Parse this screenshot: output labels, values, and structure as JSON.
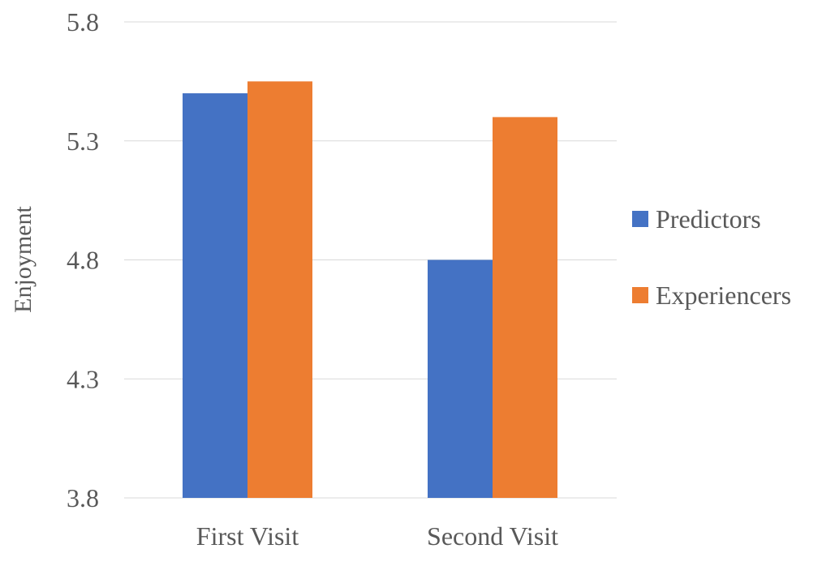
{
  "chart_data": {
    "type": "bar",
    "title": "",
    "xlabel": "",
    "ylabel": "Enjoyment",
    "ylim": [
      3.8,
      5.8
    ],
    "yticks": [
      "3.8",
      "4.3",
      "4.8",
      "5.3",
      "5.8"
    ],
    "categories": [
      "First Visit",
      "Second Visit"
    ],
    "series": [
      {
        "name": "Predictors",
        "values": [
          5.5,
          4.8
        ],
        "color": "#4472C4"
      },
      {
        "name": "Experiencers",
        "values": [
          5.55,
          5.4
        ],
        "color": "#ED7D31"
      }
    ],
    "grid": true,
    "legend_position": "right"
  }
}
